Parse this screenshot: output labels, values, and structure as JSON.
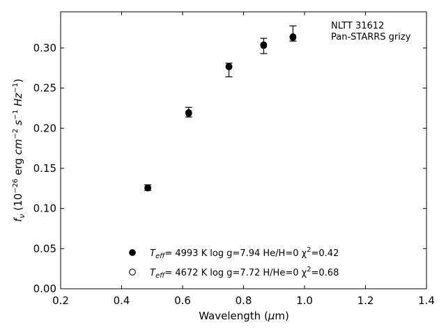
{
  "chart_data": {
    "type": "scatter",
    "title": "",
    "xlabel": "Wavelength (μm)",
    "ylabel": "fν (10⁻²⁶ erg cm⁻² s⁻¹ Hz⁻¹)",
    "xlim": [
      0.2,
      1.4
    ],
    "ylim": [
      0.0,
      0.345
    ],
    "x_ticks": [
      0.2,
      0.4,
      0.6,
      0.8,
      1.0,
      1.2,
      1.4
    ],
    "x_tick_labels": [
      "0.2",
      "0.4",
      "0.6",
      "0.8",
      "1.0",
      "1.2",
      "1.4"
    ],
    "y_ticks": [
      0.0,
      0.05,
      0.1,
      0.15,
      0.2,
      0.25,
      0.3
    ],
    "y_tick_labels": [
      "0.00",
      "0.05",
      "0.10",
      "0.15",
      "0.20",
      "0.25",
      "0.30"
    ],
    "grid": false,
    "ticks_direction": "in",
    "annotation": [
      "NLTT 31612",
      "Pan-STARRS grizy"
    ],
    "annotation_placement": "top-right",
    "observed": {
      "marker": "errorbar",
      "x": [
        0.486,
        0.62,
        0.752,
        0.866,
        0.962
      ],
      "y": [
        0.126,
        0.22,
        0.2725,
        0.3025,
        0.318
      ],
      "yerr": [
        0.0035,
        0.006,
        0.0085,
        0.0095,
        0.0095
      ]
    },
    "series": [
      {
        "marker": "filled-circle",
        "legend": {
          "teff_label": "T",
          "teff_sub": "eff",
          "text": "=  4993 K  log g=7.94  He/H=0  χ",
          "chi_sup": "2",
          "chi_val": "=0.42"
        },
        "x": [
          0.486,
          0.62,
          0.752,
          0.866,
          0.962
        ],
        "y": [
          0.1255,
          0.2195,
          0.277,
          0.304,
          0.314
        ]
      },
      {
        "marker": "open-circle",
        "legend": {
          "teff_label": "T",
          "teff_sub": "eff",
          "text": "=  4672 K  log g=7.72  H/He=0  χ",
          "chi_sup": "2",
          "chi_val": "=0.68"
        },
        "x": [
          0.486,
          0.62,
          0.752,
          0.866,
          0.962
        ],
        "y": [
          0.1258,
          0.2185,
          0.2765,
          0.303,
          0.313
        ]
      }
    ],
    "legend_placement": "lower-center",
    "colors": {
      "marker": "#000000",
      "axis": "#000000",
      "background": "#ffffff"
    }
  }
}
